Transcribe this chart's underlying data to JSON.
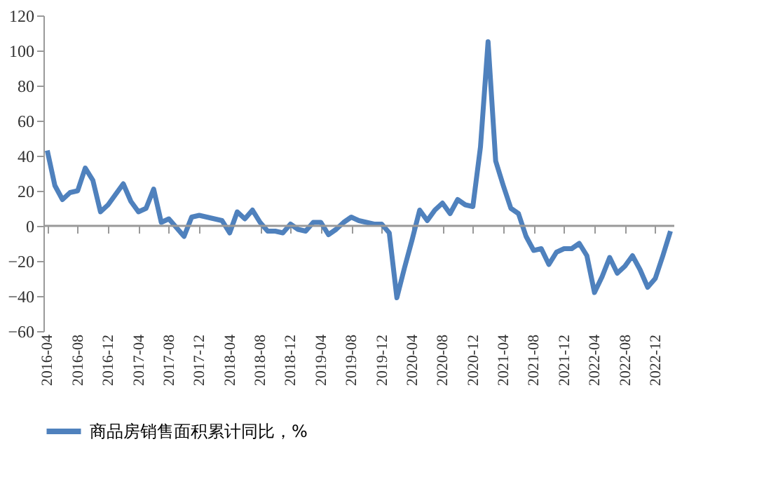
{
  "chart_data": {
    "type": "line",
    "categories": [
      "2016-04",
      null,
      null,
      null,
      "2016-08",
      null,
      null,
      null,
      "2016-12",
      null,
      null,
      null,
      "2017-04",
      null,
      null,
      null,
      "2017-08",
      null,
      null,
      null,
      "2017-12",
      null,
      null,
      null,
      "2018-04",
      null,
      null,
      null,
      "2018-08",
      null,
      null,
      null,
      "2018-12",
      null,
      null,
      null,
      "2019-04",
      null,
      null,
      null,
      "2019-08",
      null,
      null,
      null,
      "2019-12",
      null,
      null,
      null,
      "2020-04",
      null,
      null,
      null,
      "2020-08",
      null,
      null,
      null,
      "2020-12",
      null,
      null,
      null,
      "2021-04",
      null,
      null,
      null,
      "2021-08",
      null,
      null,
      null,
      "2021-12",
      null,
      null,
      null,
      "2022-04",
      null,
      null,
      null,
      "2022-08",
      null,
      null,
      null,
      "2022-12",
      null,
      null
    ],
    "series": [
      {
        "name": "商品房销售面积累计同比，%",
        "color": "#4f81bd",
        "values": [
          43,
          23,
          15,
          19,
          20,
          33,
          26,
          8,
          12,
          18,
          24,
          14,
          8,
          10,
          21,
          2,
          4,
          -1,
          -6,
          5,
          6,
          5,
          4,
          3,
          -4,
          8,
          4,
          9,
          2,
          -3,
          -3,
          -4,
          1,
          -2,
          -3,
          2,
          2,
          -5,
          -2,
          2,
          5,
          3,
          2,
          1,
          1,
          -4,
          -41,
          -24,
          -8,
          9,
          3,
          9,
          13,
          7,
          15,
          12,
          11,
          45,
          105,
          37,
          23,
          10,
          7,
          -6,
          -14,
          -13,
          -22,
          -15,
          -13,
          -13,
          -10,
          -17,
          -38,
          -29,
          -18,
          -27,
          -23,
          -17,
          -25,
          -35,
          -30,
          -17,
          -3
        ]
      }
    ],
    "ylim": [
      -60,
      120
    ],
    "yticks": [
      -60,
      -40,
      -20,
      0,
      20,
      40,
      60,
      80,
      100,
      120
    ],
    "ref_lines": [
      {
        "axis": "y",
        "value": 0,
        "color": "#999999"
      }
    ],
    "grid": false,
    "legend": "bottom",
    "marker": "none",
    "line_style": "solid"
  }
}
